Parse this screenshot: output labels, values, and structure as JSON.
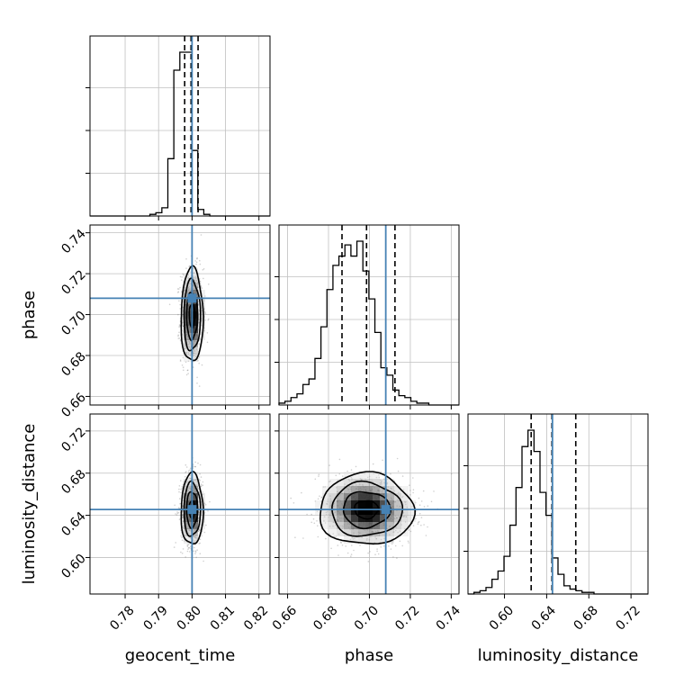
{
  "chart_data": {
    "type": "corner",
    "parameters": [
      "geocent_time",
      "phase",
      "luminosity_distance"
    ],
    "ranges": {
      "geocent_time": [
        0.7695,
        0.8233
      ],
      "phase": [
        0.6558,
        0.7438
      ],
      "luminosity_distance": [
        0.5654,
        0.7361
      ]
    },
    "ticks": {
      "geocent_time": [
        "0.78",
        "0.79",
        "0.80",
        "0.81",
        "0.82"
      ],
      "phase": [
        "0.66",
        "0.68",
        "0.70",
        "0.72",
        "0.74"
      ],
      "luminosity_distance": [
        "0.60",
        "0.64",
        "0.68",
        "0.72"
      ]
    },
    "truths": {
      "geocent_time": 0.8,
      "phase": 0.708,
      "luminosity_distance": 0.6455
    },
    "quantiles": {
      "geocent_time": [
        0.7978,
        0.7997,
        0.8018
      ],
      "phase": [
        0.6866,
        0.6986,
        0.7125
      ],
      "luminosity_distance": [
        0.6253,
        0.645,
        0.6676
      ]
    },
    "histograms": {
      "geocent_time": {
        "edges_start": 0.7695,
        "bin_width": 0.00179,
        "counts": [
          0,
          0,
          0,
          0,
          0,
          0,
          0,
          0,
          0,
          0,
          1,
          2,
          5,
          35,
          89,
          100,
          100,
          40,
          4,
          1,
          0,
          0,
          0,
          0,
          0,
          0,
          0,
          0,
          0,
          0
        ]
      },
      "phase": {
        "edges_start": 0.6558,
        "bin_width": 0.00293,
        "counts": [
          1,
          2,
          4,
          6,
          11,
          14,
          25,
          42,
          62,
          75,
          80,
          86,
          80,
          88,
          72,
          57,
          39,
          20,
          16,
          8,
          5,
          4,
          2,
          1,
          1,
          0,
          0,
          0,
          0,
          0
        ]
      },
      "luminosity_distance": {
        "edges_start": 0.5654,
        "bin_width": 0.00569,
        "counts": [
          0,
          1,
          2,
          4,
          9,
          14,
          23,
          42,
          65,
          90,
          100,
          87,
          62,
          48,
          22,
          12,
          5,
          3,
          2,
          1,
          1,
          0,
          0,
          0,
          0,
          0,
          0,
          0,
          0,
          0
        ]
      }
    },
    "pairs": [
      {
        "x": "geocent_time",
        "y": "phase",
        "center": [
          0.8,
          0.6995
        ],
        "sd": [
          0.00165,
          0.0115
        ],
        "rho": 0.0
      },
      {
        "x": "geocent_time",
        "y": "luminosity_distance",
        "center": [
          0.8,
          0.6455
        ],
        "sd": [
          0.00165,
          0.017
        ],
        "rho": 0.0
      },
      {
        "x": "phase",
        "y": "luminosity_distance",
        "center": [
          0.6985,
          0.6455
        ],
        "sd": [
          0.0115,
          0.017
        ],
        "rho": -0.05
      }
    ],
    "contour_levels_sigma": [
      0.5,
      1.0,
      1.5,
      2.0
    ],
    "colors": {
      "truth": "#4682b4",
      "hist": "#000000",
      "grid": "#c0c0c0"
    },
    "grid": true
  }
}
